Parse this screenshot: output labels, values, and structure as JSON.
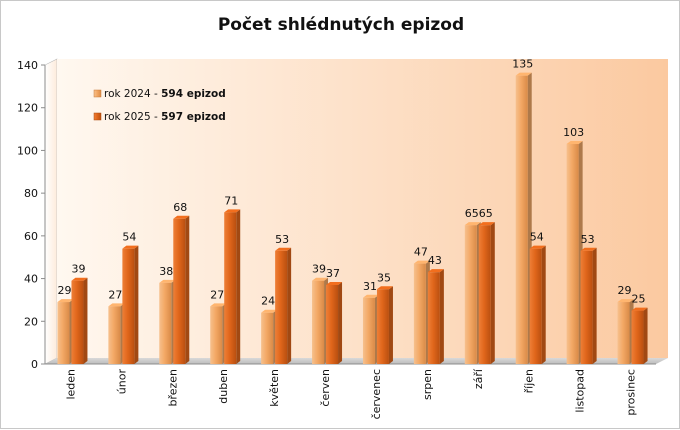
{
  "chart_data": {
    "type": "bar",
    "title": "Počet shlédnutých epizod",
    "categories": [
      "leden",
      "únor",
      "březen",
      "duben",
      "květen",
      "červen",
      "červenec",
      "srpen",
      "září",
      "říjen",
      "listopad",
      "prosinec"
    ],
    "series": [
      {
        "name": "rok 2024",
        "total_label": "594 epizod",
        "values": [
          29,
          27,
          38,
          27,
          24,
          39,
          31,
          47,
          65,
          135,
          103,
          29
        ],
        "color": "#F2A867"
      },
      {
        "name": "rok 2025",
        "total_label": "597 epizod",
        "values": [
          39,
          54,
          68,
          71,
          53,
          37,
          35,
          43,
          65,
          54,
          53,
          25
        ],
        "color": "#E0661B"
      }
    ],
    "ylim": [
      0,
      140
    ],
    "yticks": [
      0,
      20,
      40,
      60,
      80,
      100,
      120,
      140
    ],
    "legend_position": "top-left",
    "grid": false,
    "data_labels": true
  }
}
